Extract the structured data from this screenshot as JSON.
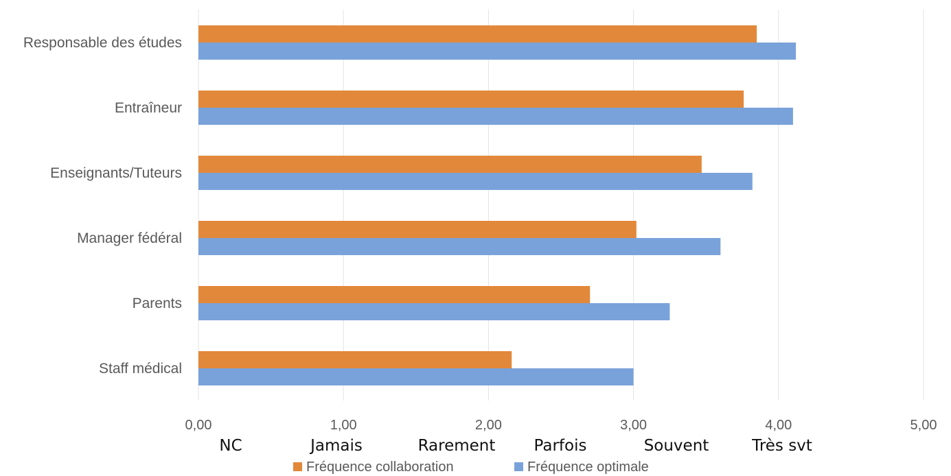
{
  "chart_data": {
    "type": "bar",
    "orientation": "horizontal",
    "categories": [
      "Responsable des études",
      "Entraîneur",
      "Enseignants/Tuteurs",
      "Manager fédéral",
      "Parents",
      "Staff médical"
    ],
    "series": [
      {
        "name": "Fréquence collaboration",
        "color": "#E2883A",
        "values": [
          3.85,
          3.76,
          3.47,
          3.02,
          2.7,
          2.16
        ]
      },
      {
        "name": "Fréquence optimale",
        "color": "#7AA2DA",
        "values": [
          4.12,
          4.1,
          3.82,
          3.6,
          3.25,
          3.0
        ]
      }
    ],
    "xlim": [
      0,
      5
    ],
    "x_ticks": [
      "0,00",
      "1,00",
      "2,00",
      "3,00",
      "4,00",
      "5,00"
    ],
    "scale_labels": [
      "NC",
      "Jamais",
      "Rarement",
      "Parfois",
      "Souvent",
      "Très svt"
    ],
    "grid": true,
    "legend_position": "bottom"
  }
}
